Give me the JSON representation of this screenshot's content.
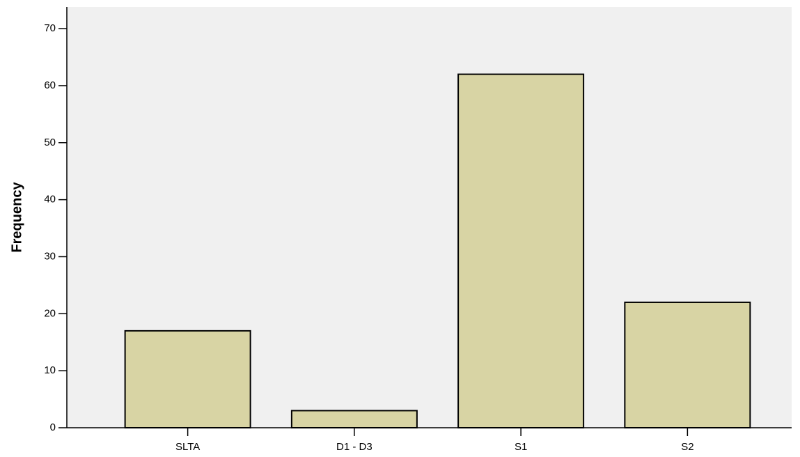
{
  "chart_data": {
    "type": "bar",
    "y_label": "Frequency",
    "categories": [
      "SLTA",
      "D1 - D3",
      "S1",
      "S2"
    ],
    "values": [
      17,
      3,
      62,
      22
    ],
    "color": "#d8d4a4",
    "ylim": [
      0,
      73.8
    ],
    "yticks": [
      0,
      10,
      20,
      30,
      40,
      50,
      60,
      70
    ]
  }
}
